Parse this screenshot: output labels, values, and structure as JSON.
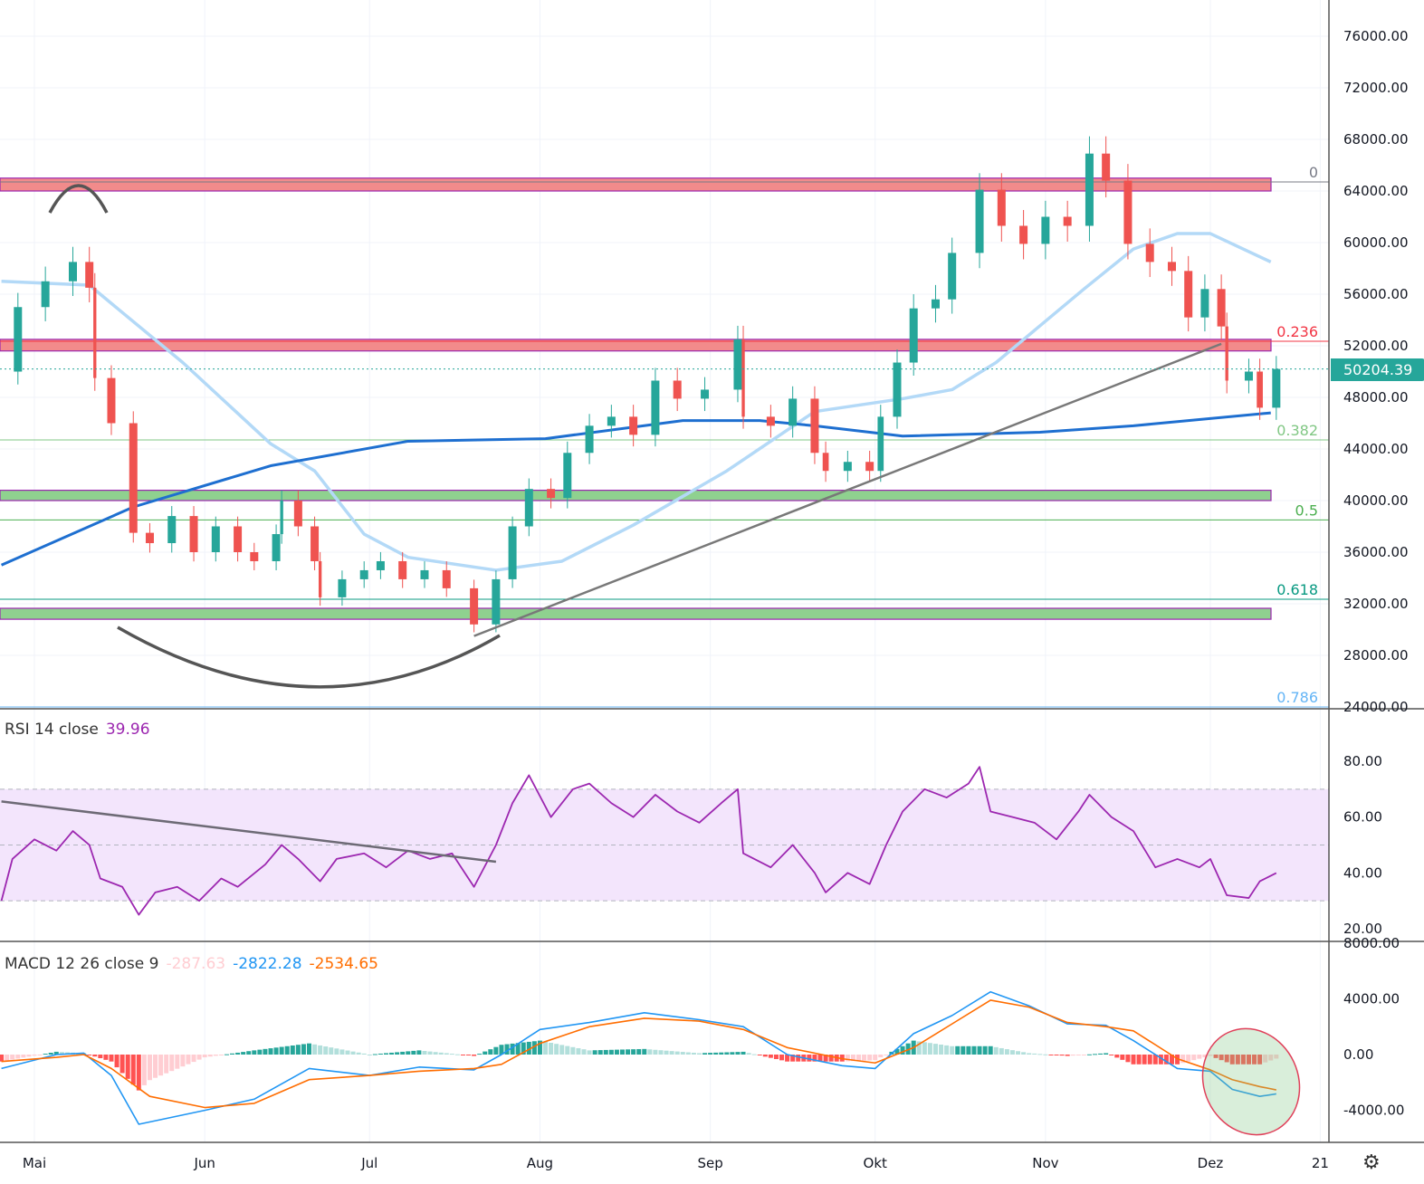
{
  "chart_data": [
    {
      "type": "candlestick",
      "price_axis": {
        "ticks": [
          76000,
          72000,
          68000,
          64000,
          60000,
          56000,
          52000,
          48000,
          44000,
          40000,
          36000,
          32000,
          28000,
          24000
        ],
        "range": [
          24000,
          78000
        ]
      },
      "time_axis": {
        "labels": [
          {
            "date": "05-01",
            "text": "Mai"
          },
          {
            "date": "06-01",
            "text": "Jun"
          },
          {
            "date": "07-01",
            "text": "Jul"
          },
          {
            "date": "08-01",
            "text": "Aug"
          },
          {
            "date": "09-01",
            "text": "Sep"
          },
          {
            "date": "10-01",
            "text": "Okt"
          },
          {
            "date": "11-01",
            "text": "Nov"
          },
          {
            "date": "12-01",
            "text": "Dez"
          },
          {
            "date": "12-21",
            "text": "21"
          }
        ]
      },
      "last_price": "50204.39",
      "last_price_value": 50204.39,
      "closes": [
        [
          "04-25",
          50000
        ],
        [
          "04-28",
          55000
        ],
        [
          "05-03",
          57000
        ],
        [
          "05-08",
          58500
        ],
        [
          "05-11",
          56500
        ],
        [
          "05-12",
          49500
        ],
        [
          "05-15",
          46000
        ],
        [
          "05-19",
          37500
        ],
        [
          "05-22",
          36700
        ],
        [
          "05-26",
          38800
        ],
        [
          "05-30",
          36000
        ],
        [
          "06-03",
          38000
        ],
        [
          "06-07",
          36000
        ],
        [
          "06-10",
          35300
        ],
        [
          "06-14",
          37400
        ],
        [
          "06-15",
          40000
        ],
        [
          "06-18",
          38000
        ],
        [
          "06-21",
          35300
        ],
        [
          "06-22",
          32500
        ],
        [
          "06-26",
          33900
        ],
        [
          "06-30",
          34600
        ],
        [
          "07-03",
          35300
        ],
        [
          "07-07",
          33900
        ],
        [
          "07-11",
          34600
        ],
        [
          "07-15",
          33200
        ],
        [
          "07-20",
          30400
        ],
        [
          "07-24",
          33900
        ],
        [
          "07-27",
          38000
        ],
        [
          "07-30",
          40900
        ],
        [
          "08-03",
          40200
        ],
        [
          "08-06",
          43700
        ],
        [
          "08-10",
          45800
        ],
        [
          "08-14",
          46500
        ],
        [
          "08-18",
          45100
        ],
        [
          "08-22",
          49300
        ],
        [
          "08-26",
          47900
        ],
        [
          "08-31",
          48600
        ],
        [
          "09-06",
          52500
        ],
        [
          "09-07",
          46500
        ],
        [
          "09-12",
          45800
        ],
        [
          "09-16",
          47900
        ],
        [
          "09-20",
          43700
        ],
        [
          "09-22",
          42300
        ],
        [
          "09-26",
          43000
        ],
        [
          "09-30",
          42300
        ],
        [
          "10-02",
          46500
        ],
        [
          "10-05",
          50700
        ],
        [
          "10-08",
          54900
        ],
        [
          "10-12",
          55600
        ],
        [
          "10-15",
          59200
        ],
        [
          "10-20",
          64100
        ],
        [
          "10-24",
          61300
        ],
        [
          "10-28",
          59900
        ],
        [
          "11-01",
          62000
        ],
        [
          "11-05",
          61300
        ],
        [
          "11-09",
          66900
        ],
        [
          "11-12",
          64800
        ],
        [
          "11-16",
          59900
        ],
        [
          "11-20",
          58500
        ],
        [
          "11-24",
          57800
        ],
        [
          "11-27",
          54200
        ],
        [
          "11-30",
          56400
        ],
        [
          "12-03",
          53500
        ],
        [
          "12-04",
          49300
        ],
        [
          "12-08",
          50000
        ],
        [
          "12-10",
          47200
        ],
        [
          "12-13",
          50204.39
        ]
      ],
      "ma_fast": [
        [
          "04-25",
          57000
        ],
        [
          "05-11",
          56700
        ],
        [
          "05-28",
          50700
        ],
        [
          "06-13",
          44400
        ],
        [
          "06-21",
          42300
        ],
        [
          "06-30",
          37400
        ],
        [
          "07-08",
          35600
        ],
        [
          "07-24",
          34600
        ],
        [
          "08-05",
          35300
        ],
        [
          "08-18",
          38100
        ],
        [
          "09-04",
          42300
        ],
        [
          "09-20",
          46900
        ],
        [
          "10-06",
          47900
        ],
        [
          "10-15",
          48600
        ],
        [
          "10-23",
          50700
        ],
        [
          "11-08",
          56400
        ],
        [
          "11-17",
          59500
        ],
        [
          "11-25",
          60700
        ],
        [
          "12-01",
          60700
        ],
        [
          "12-12",
          58500
        ]
      ],
      "ma_slow": [
        [
          "04-25",
          35000
        ],
        [
          "05-19",
          39500
        ],
        [
          "06-13",
          42700
        ],
        [
          "07-08",
          44600
        ],
        [
          "08-02",
          44800
        ],
        [
          "08-27",
          46200
        ],
        [
          "09-10",
          46200
        ],
        [
          "09-20",
          45800
        ],
        [
          "10-06",
          45000
        ],
        [
          "10-31",
          45300
        ],
        [
          "11-17",
          45800
        ],
        [
          "12-12",
          46800
        ]
      ],
      "zones": [
        {
          "from": 64000,
          "to": 65000,
          "color": "#f28b8b"
        },
        {
          "from": 51600,
          "to": 52500,
          "color": "#f28b8b"
        },
        {
          "from": 40000,
          "to": 40800,
          "color": "#8fd18f"
        },
        {
          "from": 30800,
          "to": 31650,
          "color": "#8fd18f"
        }
      ],
      "fib_levels": [
        {
          "label": "0",
          "price": 64700,
          "color": "#787b86"
        },
        {
          "label": "0.236",
          "price": 52350,
          "color": "#f23645"
        },
        {
          "label": "0.382",
          "price": 44700,
          "color": "#81c784"
        },
        {
          "label": "0.5",
          "price": 38500,
          "color": "#4caf50"
        },
        {
          "label": "0.618",
          "price": 32350,
          "color": "#089981"
        },
        {
          "label": "0.786",
          "price": 24000,
          "color": "#64b5f6"
        }
      ],
      "trendline": [
        [
          "07-20",
          29500
        ],
        [
          "12-03",
          52150
        ]
      ],
      "colors": {
        "up": "#26a69a",
        "down": "#ef5350",
        "ma_fast": "#b3d9f7",
        "ma_slow": "#1e6fd0"
      }
    },
    {
      "type": "line",
      "title": "RSI 14 close",
      "value": "39.96",
      "ylim": [
        15,
        90
      ],
      "ticks": [
        80,
        60,
        40,
        20
      ],
      "band": [
        30,
        70
      ],
      "series": [
        [
          "04-25",
          30
        ],
        [
          "04-27",
          45
        ],
        [
          "05-01",
          52
        ],
        [
          "05-05",
          48
        ],
        [
          "05-08",
          55
        ],
        [
          "05-11",
          50
        ],
        [
          "05-13",
          38
        ],
        [
          "05-17",
          35
        ],
        [
          "05-20",
          25
        ],
        [
          "05-23",
          33
        ],
        [
          "05-27",
          35
        ],
        [
          "05-31",
          30
        ],
        [
          "06-04",
          38
        ],
        [
          "06-07",
          35
        ],
        [
          "06-12",
          43
        ],
        [
          "06-15",
          50
        ],
        [
          "06-18",
          45
        ],
        [
          "06-22",
          37
        ],
        [
          "06-25",
          45
        ],
        [
          "06-30",
          47
        ],
        [
          "07-04",
          42
        ],
        [
          "07-08",
          48
        ],
        [
          "07-12",
          45
        ],
        [
          "07-16",
          47
        ],
        [
          "07-20",
          35
        ],
        [
          "07-24",
          50
        ],
        [
          "07-27",
          65
        ],
        [
          "07-30",
          75
        ],
        [
          "08-03",
          60
        ],
        [
          "08-07",
          70
        ],
        [
          "08-10",
          72
        ],
        [
          "08-14",
          65
        ],
        [
          "08-18",
          60
        ],
        [
          "08-22",
          68
        ],
        [
          "08-26",
          62
        ],
        [
          "08-30",
          58
        ],
        [
          "09-03",
          65
        ],
        [
          "09-06",
          70
        ],
        [
          "09-07",
          47
        ],
        [
          "09-12",
          42
        ],
        [
          "09-16",
          50
        ],
        [
          "09-20",
          40
        ],
        [
          "09-22",
          33
        ],
        [
          "09-26",
          40
        ],
        [
          "09-30",
          36
        ],
        [
          "10-03",
          50
        ],
        [
          "10-06",
          62
        ],
        [
          "10-10",
          70
        ],
        [
          "10-14",
          67
        ],
        [
          "10-18",
          72
        ],
        [
          "10-20",
          78
        ],
        [
          "10-22",
          62
        ],
        [
          "10-26",
          60
        ],
        [
          "10-30",
          58
        ],
        [
          "11-03",
          52
        ],
        [
          "11-07",
          62
        ],
        [
          "11-09",
          68
        ],
        [
          "11-13",
          60
        ],
        [
          "11-17",
          55
        ],
        [
          "11-21",
          42
        ],
        [
          "11-25",
          45
        ],
        [
          "11-29",
          42
        ],
        [
          "12-01",
          45
        ],
        [
          "12-04",
          32
        ],
        [
          "12-08",
          31
        ],
        [
          "12-10",
          37
        ],
        [
          "12-13",
          39.96
        ]
      ],
      "trendline": [
        [
          "04-25",
          65.6
        ],
        [
          "07-24",
          44
        ]
      ],
      "color": "#9c27b0"
    },
    {
      "type": "line",
      "title": "MACD 12 26 close 9",
      "histogram_value": "-287.63",
      "macd_value": "-2822.28",
      "signal_value": "-2534.65",
      "ylim": [
        -6200,
        7800
      ],
      "ticks": [
        8000,
        4000,
        0,
        -4000
      ],
      "macd": [
        [
          "04-25",
          -1000
        ],
        [
          "05-05",
          0
        ],
        [
          "05-10",
          100
        ],
        [
          "05-15",
          -1500
        ],
        [
          "05-20",
          -5000
        ],
        [
          "06-01",
          -4000
        ],
        [
          "06-10",
          -3200
        ],
        [
          "06-20",
          -1000
        ],
        [
          "07-01",
          -1500
        ],
        [
          "07-10",
          -900
        ],
        [
          "07-20",
          -1100
        ],
        [
          "07-25",
          0
        ],
        [
          "08-01",
          1800
        ],
        [
          "08-10",
          2300
        ],
        [
          "08-20",
          3000
        ],
        [
          "08-30",
          2500
        ],
        [
          "09-07",
          2000
        ],
        [
          "09-15",
          0
        ],
        [
          "09-25",
          -800
        ],
        [
          "10-01",
          -1000
        ],
        [
          "10-08",
          1500
        ],
        [
          "10-15",
          2800
        ],
        [
          "10-22",
          4500
        ],
        [
          "10-29",
          3500
        ],
        [
          "11-05",
          2200
        ],
        [
          "11-12",
          2100
        ],
        [
          "11-17",
          1000
        ],
        [
          "11-25",
          -1000
        ],
        [
          "12-01",
          -1200
        ],
        [
          "12-05",
          -2500
        ],
        [
          "12-10",
          -3000
        ],
        [
          "12-13",
          -2822.28
        ]
      ],
      "signal": [
        [
          "04-25",
          -500
        ],
        [
          "05-05",
          -200
        ],
        [
          "05-10",
          0
        ],
        [
          "05-15",
          -1000
        ],
        [
          "05-22",
          -3000
        ],
        [
          "06-01",
          -3800
        ],
        [
          "06-10",
          -3500
        ],
        [
          "06-20",
          -1800
        ],
        [
          "07-01",
          -1500
        ],
        [
          "07-10",
          -1200
        ],
        [
          "07-20",
          -1000
        ],
        [
          "07-25",
          -700
        ],
        [
          "08-01",
          800
        ],
        [
          "08-10",
          2000
        ],
        [
          "08-20",
          2600
        ],
        [
          "08-30",
          2400
        ],
        [
          "09-07",
          1800
        ],
        [
          "09-15",
          500
        ],
        [
          "09-25",
          -300
        ],
        [
          "10-01",
          -600
        ],
        [
          "10-08",
          500
        ],
        [
          "10-15",
          2200
        ],
        [
          "10-22",
          3900
        ],
        [
          "10-29",
          3400
        ],
        [
          "11-05",
          2300
        ],
        [
          "11-12",
          2000
        ],
        [
          "11-17",
          1700
        ],
        [
          "11-25",
          -300
        ],
        [
          "12-01",
          -1100
        ],
        [
          "12-05",
          -1800
        ],
        [
          "12-10",
          -2300
        ],
        [
          "12-13",
          -2534.65
        ]
      ],
      "colors": {
        "macd": "#2196f3",
        "signal": "#ff6d00",
        "hist_up_strong": "#26a69a",
        "hist_up_weak": "#b2dfdb",
        "hist_down_strong": "#ff5252",
        "hist_down_weak": "#ffcdd2"
      }
    }
  ],
  "toolbar": {
    "settings_icon": "gear-icon"
  }
}
